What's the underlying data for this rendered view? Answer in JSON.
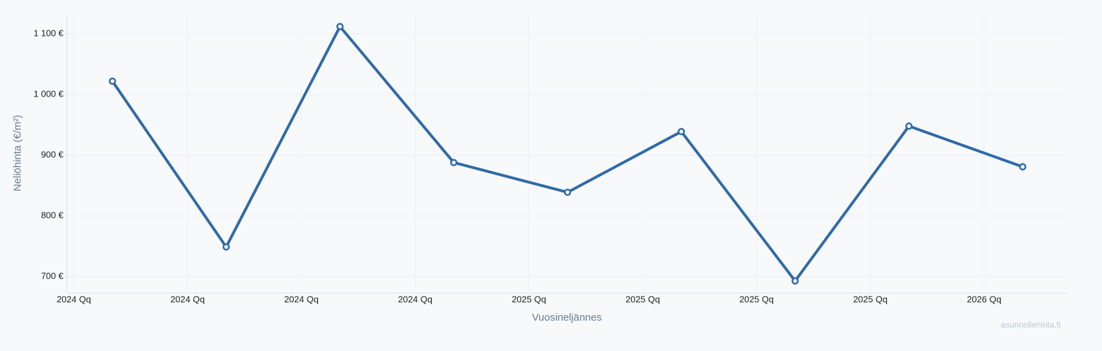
{
  "chart_data": {
    "type": "line",
    "categories": [
      "2024 Qq",
      "2024 Qq",
      "2024 Qq",
      "2024 Qq",
      "2025 Qq",
      "2025 Qq",
      "2025 Qq",
      "2025 Qq",
      "2026 Qq"
    ],
    "series": [
      {
        "color": "#2f6aa6",
        "values": [
          1022,
          749,
          1112,
          888,
          839,
          939,
          693,
          948,
          881
        ]
      }
    ],
    "ylim": [
      673,
      1133
    ],
    "yticks": [
      {
        "value": 700,
        "label": "700 €"
      },
      {
        "value": 800,
        "label": "800 €"
      },
      {
        "value": 900,
        "label": "900 €"
      },
      {
        "value": 1000,
        "label": "1 000 €"
      },
      {
        "value": 1100,
        "label": "1 100 €"
      }
    ],
    "xlabel": "Vuosineljännes",
    "ylabel": "Neliöhinta (€/m²)",
    "watermark": "asunnollehinta.fi",
    "grid": true
  }
}
